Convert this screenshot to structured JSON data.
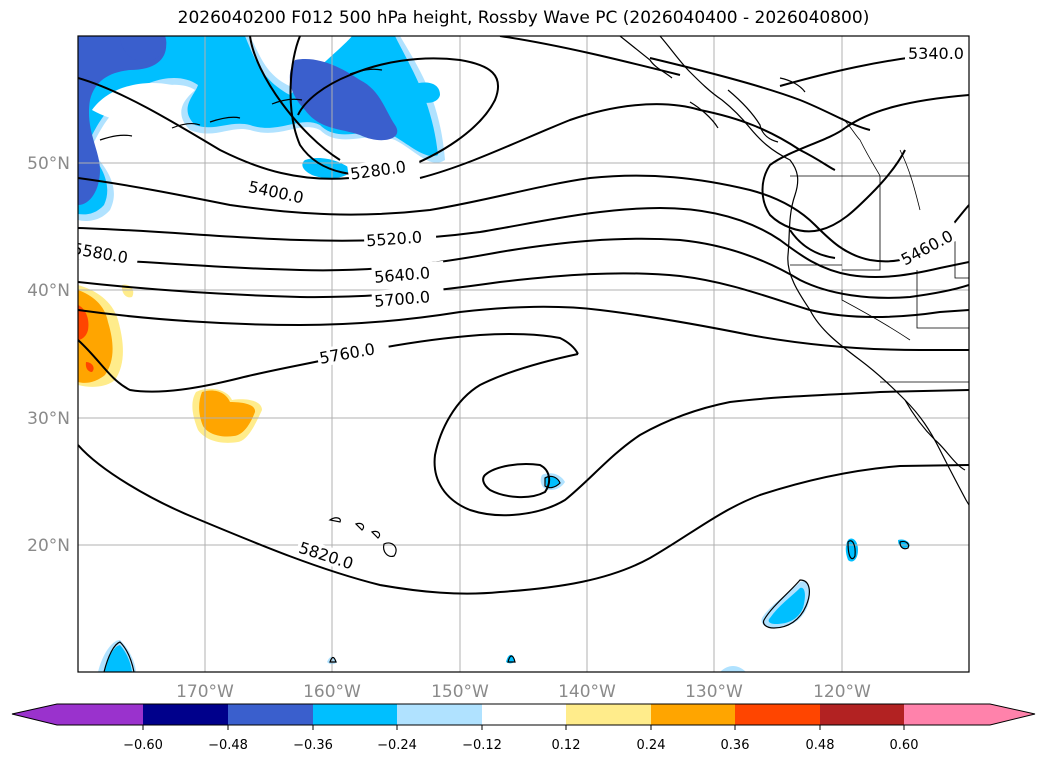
{
  "title": "2026040200 F012 500 hPa height, Rossby Wave PC (2026040400 - 2026040800)",
  "axes": {
    "lat_labels": [
      "50°N",
      "40°N",
      "30°N",
      "20°N"
    ],
    "lon_labels": [
      "170°W",
      "160°W",
      "150°W",
      "140°W",
      "130°W",
      "120°W"
    ],
    "lon_range": [
      -180,
      -110
    ],
    "lat_range": [
      10,
      60
    ],
    "grid": true
  },
  "contour_labels": [
    "5340.0",
    "5280.0",
    "5400.0",
    "5520.0",
    "5580.0",
    "5640.0",
    "5700.0",
    "5460.0",
    "5760.0",
    "5820.0"
  ],
  "colorbar": {
    "ticks": [
      "−0.60",
      "−0.48",
      "−0.36",
      "−0.24",
      "−0.12",
      "0.12",
      "0.24",
      "0.36",
      "0.48",
      "0.60"
    ],
    "colors": [
      "#9a32cd",
      "#00008b",
      "#3a5fcd",
      "#00bfff",
      "#b0e2ff",
      "#ffffff",
      "#ffec8b",
      "#ffa500",
      "#ff4500",
      "#b22222",
      "#ff82ab"
    ]
  }
}
